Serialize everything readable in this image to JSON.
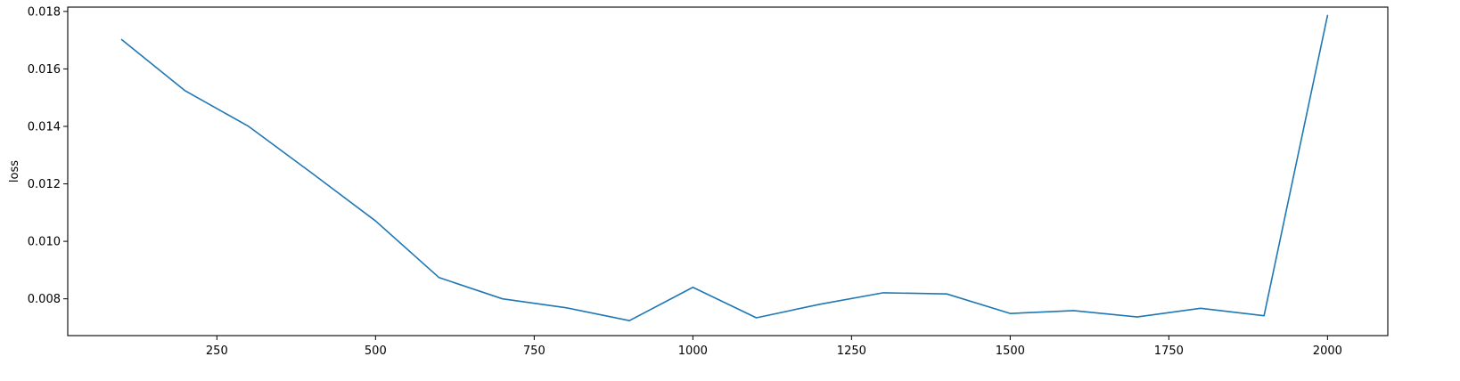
{
  "chart_data": {
    "type": "line",
    "title": "",
    "xlabel": "",
    "ylabel": "loss",
    "xlim": [
      15,
      2095
    ],
    "ylim": [
      0.00672,
      0.01815
    ],
    "xticks": [
      250,
      500,
      750,
      1000,
      1250,
      1500,
      1750,
      2000
    ],
    "yticks": [
      0.008,
      0.01,
      0.012,
      0.014,
      0.016,
      0.018
    ],
    "xtick_labels": [
      "250",
      "500",
      "750",
      "1000",
      "1250",
      "1500",
      "1750",
      "2000"
    ],
    "ytick_labels": [
      "0.008",
      "0.010",
      "0.012",
      "0.014",
      "0.016",
      "0.018"
    ],
    "grid": false,
    "legend": false,
    "series": [
      {
        "color": "#1f77b4",
        "x": [
          100,
          200,
          300,
          400,
          500,
          600,
          700,
          800,
          900,
          1000,
          1100,
          1200,
          1300,
          1400,
          1500,
          1600,
          1700,
          1800,
          1900,
          2000
        ],
        "y": [
          0.01702,
          0.01524,
          0.014,
          0.01237,
          0.01071,
          0.00874,
          0.008,
          0.00769,
          0.00724,
          0.0084,
          0.00734,
          0.00781,
          0.00821,
          0.00817,
          0.00749,
          0.00759,
          0.00737,
          0.00767,
          0.00741,
          0.01786
        ]
      }
    ]
  }
}
